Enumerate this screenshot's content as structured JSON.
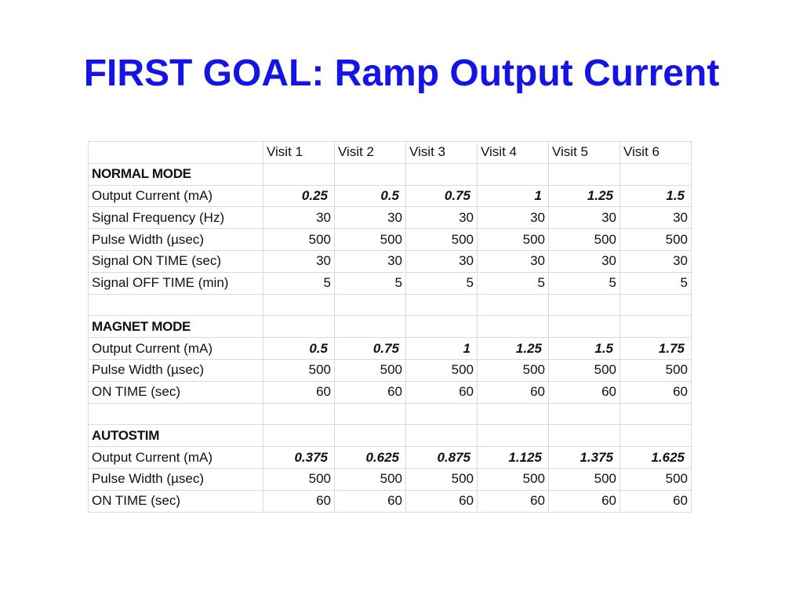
{
  "title": "FIRST GOAL: Ramp Output Current",
  "table": {
    "header": [
      "Visit 1",
      "Visit 2",
      "Visit 3",
      "Visit 4",
      "Visit 5",
      "Visit 6"
    ],
    "sections": [
      {
        "name": "NORMAL MODE",
        "rows": [
          {
            "label": "Output Current (mA)",
            "emphasis": true,
            "values": [
              0.25,
              0.5,
              0.75,
              1,
              1.25,
              1.5
            ]
          },
          {
            "label": "Signal Frequency (Hz)",
            "values": [
              30,
              30,
              30,
              30,
              30,
              30
            ]
          },
          {
            "label": "Pulse Width (µsec)",
            "values": [
              500,
              500,
              500,
              500,
              500,
              500
            ]
          },
          {
            "label": "Signal ON TIME (sec)",
            "values": [
              30,
              30,
              30,
              30,
              30,
              30
            ]
          },
          {
            "label": "Signal OFF TIME (min)",
            "values": [
              5,
              5,
              5,
              5,
              5,
              5
            ]
          }
        ]
      },
      {
        "name": "MAGNET MODE",
        "rows": [
          {
            "label": "Output Current (mA)",
            "emphasis": true,
            "values": [
              0.5,
              0.75,
              1,
              1.25,
              1.5,
              1.75
            ]
          },
          {
            "label": "Pulse Width (µsec)",
            "values": [
              500,
              500,
              500,
              500,
              500,
              500
            ]
          },
          {
            "label": "ON TIME (sec)",
            "values": [
              60,
              60,
              60,
              60,
              60,
              60
            ]
          }
        ]
      },
      {
        "name": "AUTOSTIM",
        "rows": [
          {
            "label": "Output Current (mA)",
            "emphasis": true,
            "values": [
              0.375,
              0.625,
              0.875,
              1.125,
              1.375,
              1.625
            ]
          },
          {
            "label": "Pulse Width (µsec)",
            "values": [
              500,
              500,
              500,
              500,
              500,
              500
            ]
          },
          {
            "label": "ON TIME (sec)",
            "values": [
              60,
              60,
              60,
              60,
              60,
              60
            ]
          }
        ]
      }
    ]
  }
}
